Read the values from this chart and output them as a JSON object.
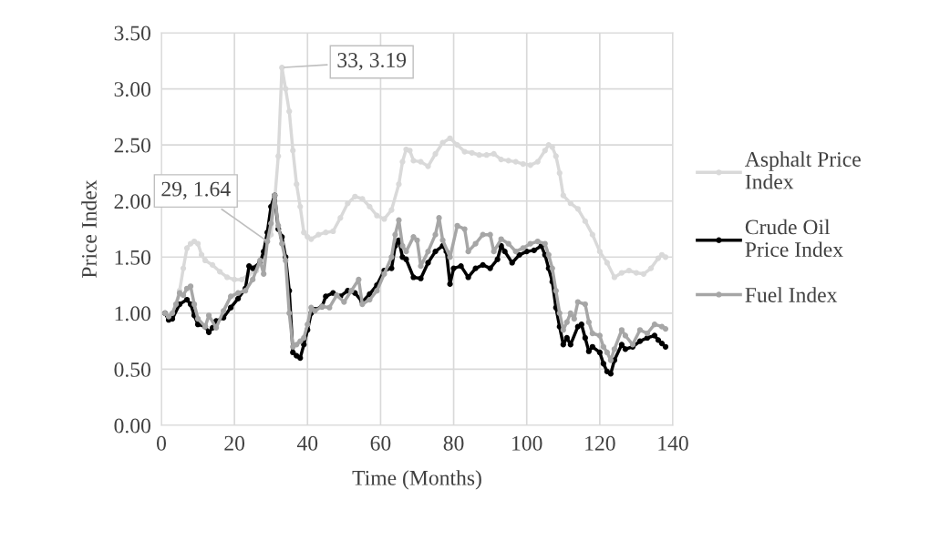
{
  "chart_data": {
    "type": "line",
    "xlabel": "Time (Months)",
    "ylabel": "Price Index",
    "xlim": [
      0,
      140
    ],
    "xticks": [
      0,
      20,
      40,
      60,
      80,
      100,
      120,
      140
    ],
    "ylim": [
      0,
      3.5
    ],
    "yticks": [
      {
        "value": 0,
        "label": "0.00"
      },
      {
        "value": 0.5,
        "label": "0.50"
      },
      {
        "value": 1,
        "label": "1.00"
      },
      {
        "value": 1.5,
        "label": "1.50"
      },
      {
        "value": 2,
        "label": "2.00"
      },
      {
        "value": 2.5,
        "label": "2.50"
      },
      {
        "value": 3,
        "label": "3.00"
      },
      {
        "value": 3.5,
        "label": "3.50"
      }
    ],
    "grid": true,
    "legend": "right",
    "marker": "circle",
    "line_style": "solid",
    "annotations": [
      {
        "text": "33, 3.19",
        "x": 33,
        "y": 3.19
      },
      {
        "text": "29, 1.64",
        "x": 29,
        "y": 1.64
      }
    ],
    "series": [
      {
        "name": "Asphalt Price\nIndex",
        "color": "#d9d9d9",
        "x": [
          1,
          3,
          5,
          6,
          7,
          8,
          9,
          10,
          11,
          12,
          14,
          16,
          18,
          20,
          22,
          24,
          26,
          28,
          29,
          30,
          31,
          32,
          33,
          34,
          35,
          36,
          37,
          38,
          39,
          40,
          41,
          43,
          45,
          47,
          49,
          51,
          53,
          55,
          57,
          59,
          61,
          63,
          65,
          66,
          67,
          68,
          69,
          71,
          73,
          75,
          77,
          79,
          81,
          83,
          85,
          87,
          89,
          91,
          93,
          95,
          97,
          99,
          101,
          103,
          105,
          106,
          107,
          108,
          109,
          110,
          112,
          114,
          116,
          118,
          120,
          122,
          124,
          126,
          128,
          130,
          132,
          134,
          136,
          137,
          138
        ],
        "values": [
          1.0,
          0.97,
          1.2,
          1.4,
          1.58,
          1.62,
          1.64,
          1.62,
          1.52,
          1.47,
          1.43,
          1.37,
          1.32,
          1.3,
          1.3,
          1.35,
          1.38,
          1.5,
          1.64,
          1.7,
          2.0,
          2.4,
          3.19,
          3.0,
          2.8,
          2.45,
          2.15,
          1.95,
          1.72,
          1.68,
          1.66,
          1.7,
          1.72,
          1.73,
          1.85,
          1.98,
          2.04,
          2.02,
          1.95,
          1.87,
          1.84,
          1.92,
          2.15,
          2.35,
          2.46,
          2.45,
          2.36,
          2.35,
          2.31,
          2.42,
          2.52,
          2.56,
          2.5,
          2.44,
          2.43,
          2.41,
          2.41,
          2.42,
          2.37,
          2.36,
          2.35,
          2.33,
          2.32,
          2.35,
          2.45,
          2.5,
          2.48,
          2.4,
          2.25,
          2.05,
          1.98,
          1.93,
          1.82,
          1.7,
          1.55,
          1.45,
          1.32,
          1.36,
          1.38,
          1.36,
          1.35,
          1.4,
          1.49,
          1.52,
          1.5
        ]
      },
      {
        "name": "Crude Oil\nPrice Index",
        "color": "#000000",
        "x": [
          1,
          2,
          3,
          5,
          7,
          8,
          9,
          10,
          12,
          13,
          14,
          15,
          17,
          19,
          21,
          23,
          24,
          25,
          27,
          28,
          29,
          30,
          31,
          32,
          33,
          34,
          35,
          36,
          37,
          38,
          39,
          40,
          41,
          42,
          44,
          45,
          47,
          49,
          51,
          53,
          55,
          57,
          59,
          61,
          63,
          64,
          65,
          66,
          67,
          69,
          71,
          73,
          75,
          77,
          78,
          79,
          80,
          82,
          84,
          86,
          88,
          90,
          92,
          93,
          94,
          96,
          98,
          100,
          102,
          104,
          105,
          106,
          107,
          108,
          109,
          110,
          111,
          112,
          114,
          115,
          116,
          117,
          118,
          120,
          121,
          122,
          123,
          124,
          126,
          127,
          129,
          131,
          133,
          135,
          136,
          137,
          138
        ],
        "values": [
          1.0,
          0.94,
          0.95,
          1.08,
          1.12,
          1.08,
          0.98,
          0.9,
          0.88,
          0.83,
          0.87,
          0.93,
          0.96,
          1.05,
          1.13,
          1.22,
          1.42,
          1.4,
          1.45,
          1.55,
          1.72,
          1.95,
          2.05,
          1.75,
          1.68,
          1.5,
          1.2,
          0.65,
          0.62,
          0.6,
          0.72,
          0.85,
          1.0,
          1.03,
          1.06,
          1.15,
          1.18,
          1.15,
          1.2,
          1.18,
          1.1,
          1.17,
          1.25,
          1.38,
          1.4,
          1.6,
          1.65,
          1.5,
          1.48,
          1.32,
          1.31,
          1.45,
          1.55,
          1.6,
          1.55,
          1.26,
          1.4,
          1.42,
          1.32,
          1.4,
          1.43,
          1.4,
          1.48,
          1.6,
          1.55,
          1.45,
          1.52,
          1.55,
          1.56,
          1.6,
          1.52,
          1.4,
          1.28,
          1.05,
          0.88,
          0.72,
          0.78,
          0.72,
          0.88,
          0.9,
          0.78,
          0.66,
          0.7,
          0.65,
          0.55,
          0.48,
          0.46,
          0.58,
          0.72,
          0.68,
          0.7,
          0.75,
          0.78,
          0.8,
          0.76,
          0.73,
          0.7
        ]
      },
      {
        "name": "Fuel Index",
        "color": "#a6a6a6",
        "x": [
          1,
          2,
          3,
          4,
          5,
          6,
          7,
          8,
          9,
          10,
          12,
          13,
          15,
          17,
          19,
          21,
          23,
          25,
          27,
          28,
          29,
          30,
          31,
          32,
          33,
          34,
          35,
          36,
          37,
          38,
          39,
          40,
          41,
          42,
          44,
          46,
          48,
          50,
          52,
          54,
          55,
          57,
          59,
          61,
          63,
          64,
          65,
          66,
          67,
          69,
          70,
          71,
          73,
          75,
          76,
          77,
          79,
          81,
          83,
          84,
          86,
          88,
          90,
          91,
          93,
          95,
          97,
          99,
          101,
          103,
          105,
          106,
          107,
          108,
          109,
          110,
          111,
          112,
          113,
          114,
          116,
          117,
          118,
          120,
          121,
          122,
          123,
          124,
          126,
          127,
          129,
          131,
          133,
          135,
          137,
          138
        ],
        "values": [
          1.0,
          0.97,
          1.0,
          1.08,
          1.18,
          1.16,
          1.22,
          1.24,
          1.08,
          0.95,
          0.88,
          0.98,
          0.87,
          1.02,
          1.15,
          1.18,
          1.2,
          1.3,
          1.47,
          1.35,
          1.64,
          1.8,
          2.05,
          1.78,
          1.62,
          1.47,
          1.0,
          0.7,
          0.72,
          0.75,
          0.78,
          0.9,
          1.05,
          1.02,
          1.06,
          1.05,
          1.16,
          1.1,
          1.2,
          1.3,
          1.08,
          1.12,
          1.2,
          1.35,
          1.5,
          1.7,
          1.83,
          1.6,
          1.55,
          1.68,
          1.65,
          1.42,
          1.55,
          1.7,
          1.85,
          1.65,
          1.5,
          1.78,
          1.75,
          1.55,
          1.62,
          1.7,
          1.7,
          1.55,
          1.66,
          1.62,
          1.55,
          1.58,
          1.62,
          1.64,
          1.62,
          1.52,
          1.4,
          1.2,
          1.0,
          0.85,
          0.92,
          1.0,
          0.95,
          1.1,
          1.08,
          0.92,
          0.82,
          0.8,
          0.7,
          0.65,
          0.58,
          0.68,
          0.85,
          0.8,
          0.72,
          0.85,
          0.82,
          0.9,
          0.88,
          0.86
        ]
      }
    ]
  }
}
